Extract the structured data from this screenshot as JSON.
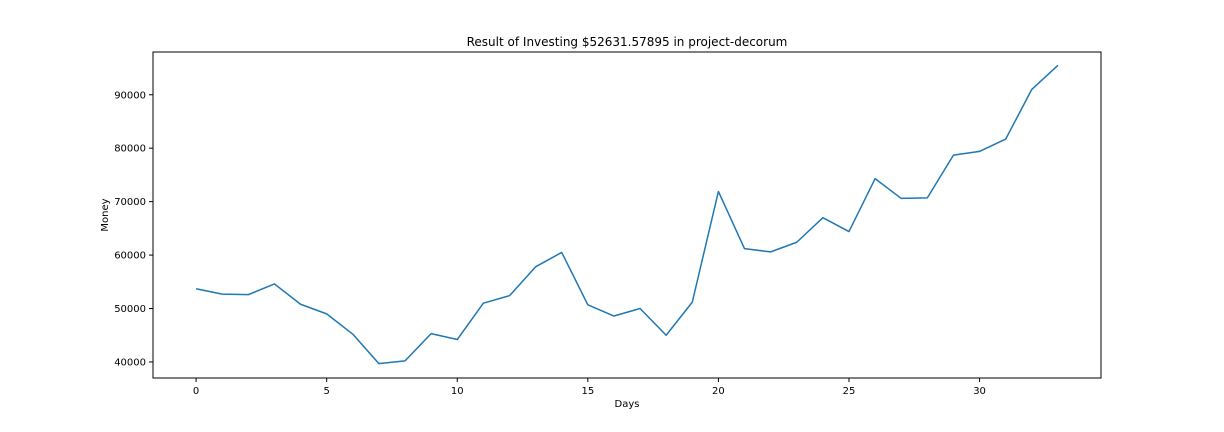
{
  "chart_data": {
    "type": "line",
    "title": "Result of Investing $52631.57895 in project-decorum",
    "xlabel": "Days",
    "ylabel": "Money",
    "xlim": [
      -1.65,
      34.65
    ],
    "ylim": [
      37000,
      98000
    ],
    "xticks": [
      0,
      5,
      10,
      15,
      20,
      25,
      30
    ],
    "yticks": [
      40000,
      50000,
      60000,
      70000,
      80000,
      90000
    ],
    "grid": false,
    "line_color": "#1f77b4",
    "series": [
      {
        "x": [
          0,
          1,
          2,
          3,
          4,
          5,
          6,
          7,
          8,
          9,
          10,
          11,
          12,
          13,
          14,
          15,
          16,
          17,
          18,
          19,
          20,
          21,
          22,
          23,
          24,
          25,
          26,
          27,
          28,
          29,
          30,
          31,
          32,
          33
        ],
        "values": [
          53700,
          52700,
          52600,
          54600,
          50800,
          49000,
          45200,
          39700,
          40200,
          45300,
          44200,
          51000,
          52400,
          57800,
          60500,
          50700,
          48600,
          50000,
          45000,
          51200,
          71900,
          61200,
          60600,
          62400,
          67000,
          64400,
          74300,
          70600,
          70700,
          78700,
          79400,
          81700,
          91000,
          95500
        ]
      }
    ]
  }
}
